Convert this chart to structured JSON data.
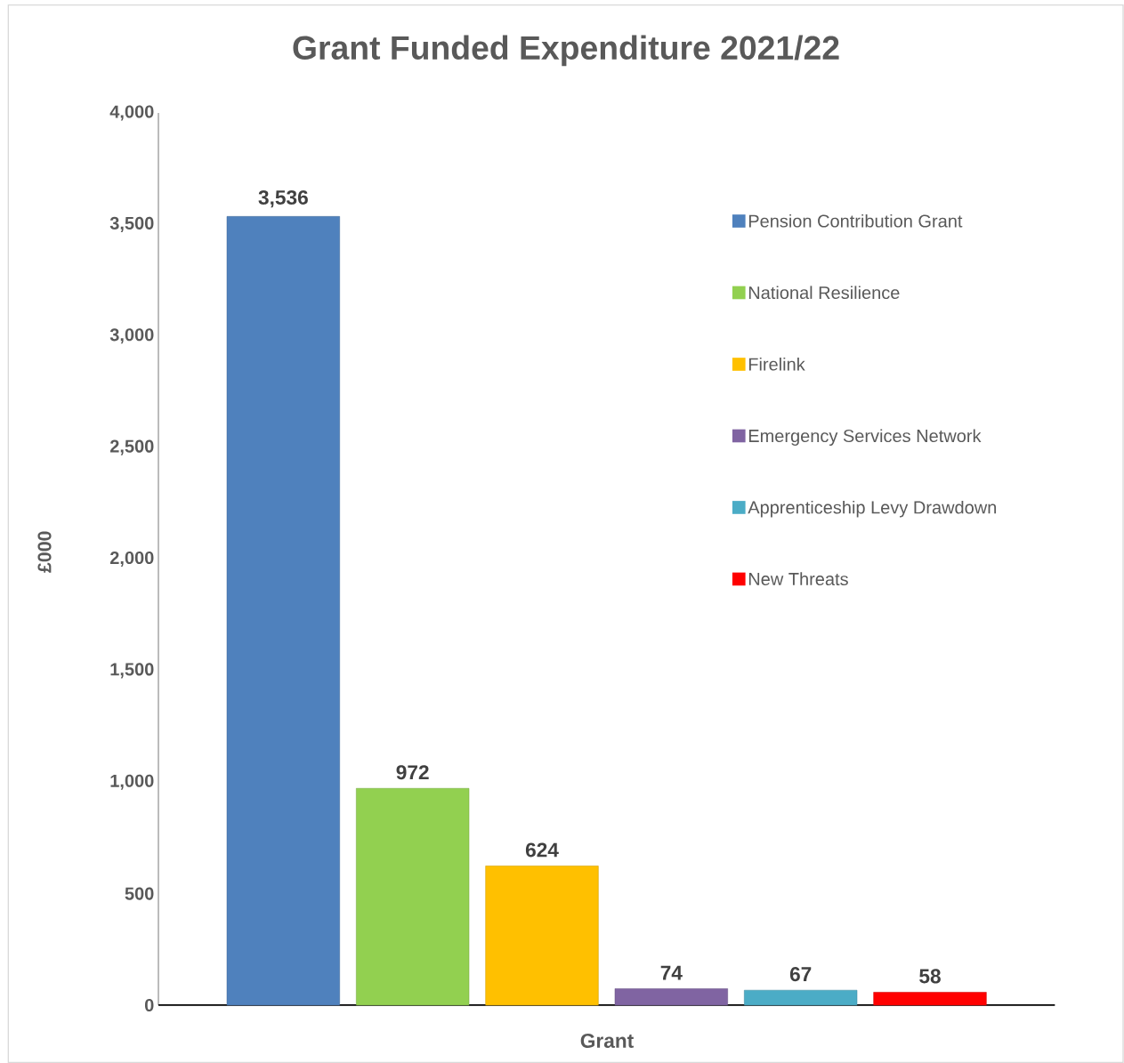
{
  "chart_data": {
    "type": "bar",
    "title": "Grant Funded Expenditure 2021/22",
    "xlabel": "Grant",
    "ylabel": "£000",
    "categories": [
      null
    ],
    "series": [
      {
        "name": "Pension Contribution Grant",
        "color": "#4f81bd",
        "values": [
          3536
        ],
        "value_labels": [
          "3,536"
        ]
      },
      {
        "name": "National Resilience",
        "color": "#92d050",
        "values": [
          972
        ],
        "value_labels": [
          "972"
        ]
      },
      {
        "name": "Firelink",
        "color": "#ffc000",
        "values": [
          624
        ],
        "value_labels": [
          "624"
        ]
      },
      {
        "name": "Emergency Services Network",
        "color": "#8064a2",
        "values": [
          74
        ],
        "value_labels": [
          "74"
        ]
      },
      {
        "name": "Apprenticeship Levy Drawdown",
        "color": "#4bacc6",
        "values": [
          67
        ],
        "value_labels": [
          "67"
        ]
      },
      {
        "name": "New Threats",
        "color": "#ff0000",
        "values": [
          58
        ],
        "value_labels": [
          "58"
        ]
      }
    ],
    "ylim": [
      0,
      4000
    ],
    "yticks": [
      0,
      500,
      {
        "value": 1000,
        "label": "1,000"
      },
      {
        "value": 1500,
        "label": "1,500"
      },
      {
        "value": 2000,
        "label": "2,000"
      },
      {
        "value": 2500,
        "label": "2,500"
      },
      {
        "value": 3000,
        "label": "3,000"
      },
      {
        "value": 3500,
        "label": "3,500"
      },
      {
        "value": 4000,
        "label": "4,000"
      }
    ],
    "legend": "top right",
    "grid": false
  }
}
